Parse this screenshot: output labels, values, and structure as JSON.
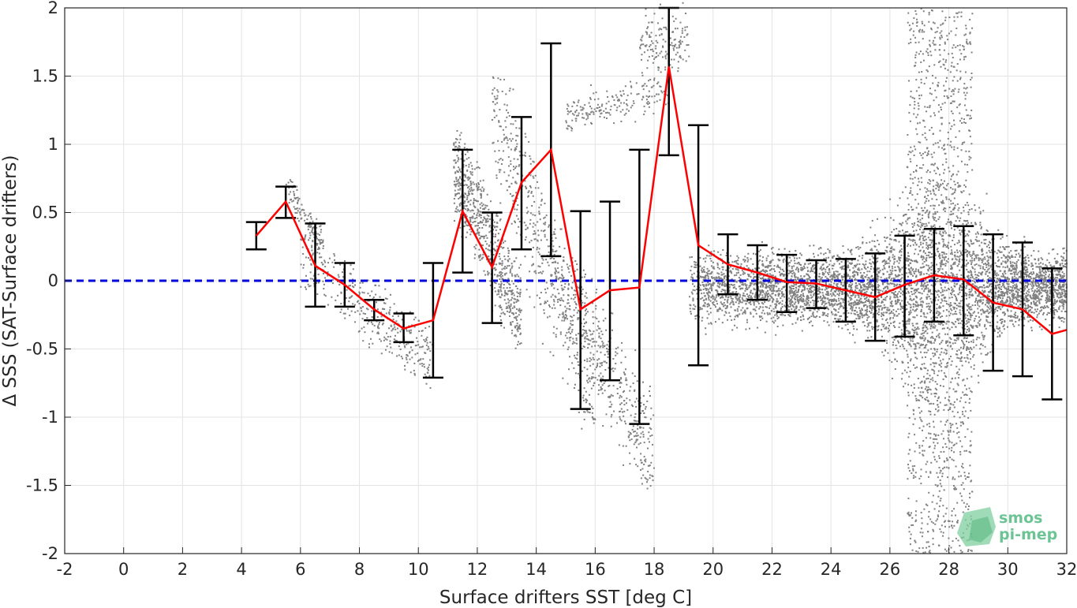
{
  "chart_data": {
    "type": "line",
    "xlabel": "Surface drifters SST [deg C]",
    "ylabel": "Δ SSS (SAT-Surface drifters)",
    "xlim": [
      -2,
      32
    ],
    "ylim": [
      -2,
      2
    ],
    "xticks": [
      -2,
      0,
      2,
      4,
      6,
      8,
      10,
      12,
      14,
      16,
      18,
      20,
      22,
      24,
      26,
      28,
      30,
      32
    ],
    "yticks": [
      -2,
      -1.5,
      -1,
      -0.5,
      0,
      0.5,
      1,
      1.5,
      2
    ],
    "xtick_labels": [
      "-2",
      "0",
      "2",
      "4",
      "6",
      "8",
      "10",
      "12",
      "14",
      "16",
      "18",
      "20",
      "22",
      "24",
      "26",
      "28",
      "30",
      "32"
    ],
    "ytick_labels": [
      "-2",
      "-1.5",
      "-1",
      "-0.5",
      "0",
      "0.5",
      "1",
      "1.5",
      "2"
    ],
    "grid": true,
    "series": [
      {
        "type": "line",
        "color": "#ff0000",
        "x": [
          4.5,
          5.5,
          6.5,
          7.5,
          8.5,
          9.5,
          10.5,
          11.5,
          12.5,
          13.5,
          14.5,
          15.5,
          16.5,
          17.5,
          18.5,
          19.5,
          20.5,
          21.5,
          22.5,
          23.5,
          24.5,
          25.5,
          26.5,
          27.5,
          28.5,
          29.5,
          30.5,
          31.5,
          32
        ],
        "y": [
          0.33,
          0.58,
          0.11,
          -0.03,
          -0.21,
          -0.35,
          -0.29,
          0.51,
          0.1,
          0.72,
          0.96,
          -0.21,
          -0.07,
          -0.05,
          1.57,
          0.26,
          0.12,
          0.06,
          -0.01,
          -0.02,
          -0.07,
          -0.12,
          -0.03,
          0.04,
          0.01,
          -0.16,
          -0.21,
          -0.39,
          -0.36
        ]
      },
      {
        "type": "errorbar",
        "color": "#000000",
        "x": [
          4.5,
          5.5,
          6.5,
          7.5,
          8.5,
          9.5,
          10.5,
          11.5,
          12.5,
          13.5,
          14.5,
          15.5,
          16.5,
          17.5,
          18.5,
          19.5,
          20.5,
          21.5,
          22.5,
          23.5,
          24.5,
          25.5,
          26.5,
          27.5,
          28.5,
          29.5,
          30.5,
          31.5
        ],
        "lower": [
          0.23,
          0.46,
          -0.19,
          -0.19,
          -0.29,
          -0.45,
          -0.71,
          0.06,
          -0.31,
          0.23,
          0.18,
          -0.94,
          -0.73,
          -1.05,
          0.92,
          -0.62,
          -0.1,
          -0.14,
          -0.23,
          -0.2,
          -0.3,
          -0.44,
          -0.41,
          -0.3,
          -0.4,
          -0.66,
          -0.7,
          -0.87
        ],
        "upper": [
          0.43,
          0.69,
          0.42,
          0.13,
          -0.14,
          -0.24,
          0.13,
          0.96,
          0.5,
          1.2,
          1.74,
          0.51,
          0.58,
          0.96,
          2.0,
          1.14,
          0.34,
          0.26,
          0.19,
          0.15,
          0.16,
          0.2,
          0.33,
          0.38,
          0.4,
          0.34,
          0.28,
          0.09
        ]
      },
      {
        "type": "hline",
        "color": "#0000dd",
        "style": "dashed",
        "y": 0
      },
      {
        "type": "scatter",
        "color": "#808080",
        "note_clusters": [
          {
            "x": [
              5.5,
              6.8
            ],
            "y": [
              0.3,
              0.65
            ],
            "slope": -0.35,
            "spread": 0.08,
            "n": 120
          },
          {
            "x": [
              6.0,
              10.5
            ],
            "y": [
              -0.7,
              0.3
            ],
            "slope": -0.17,
            "spread": 0.12,
            "n": 400
          },
          {
            "x": [
              11.2,
              13.5
            ],
            "y": [
              -0.4,
              1.0
            ],
            "slope": -0.5,
            "spread": 0.2,
            "n": 700
          },
          {
            "x": [
              12.5,
              16.0
            ],
            "y": [
              -1.0,
              1.4
            ],
            "slope": -0.6,
            "spread": 0.25,
            "n": 500
          },
          {
            "x": [
              14.5,
              18.0
            ],
            "y": [
              -1.45,
              0.3
            ],
            "slope": -0.4,
            "spread": 0.2,
            "n": 500
          },
          {
            "x": [
              15.0,
              18.5
            ],
            "y": [
              1.1,
              1.5
            ],
            "slope": 0.05,
            "spread": 0.1,
            "n": 200
          },
          {
            "x": [
              17.5,
              19.2
            ],
            "y": [
              1.5,
              2.0
            ],
            "slope": 0.0,
            "spread": 0.2,
            "n": 150
          },
          {
            "x": [
              19.0,
              32.0
            ],
            "y": [
              -2.0,
              2.0
            ],
            "slope": 0.0,
            "spread": 0.0,
            "n": 0
          }
        ]
      }
    ]
  },
  "logo": {
    "line1": "smos",
    "line2": "pi-mep"
  }
}
